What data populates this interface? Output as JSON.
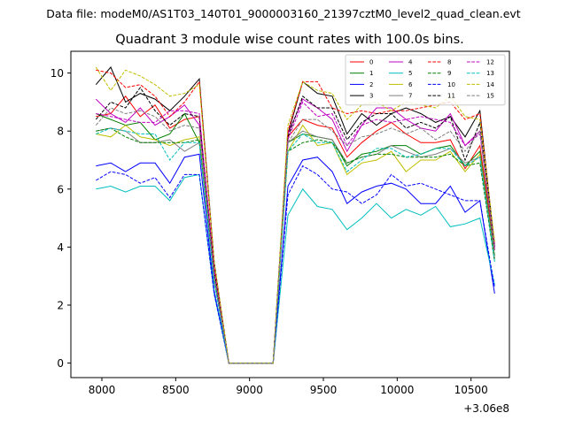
{
  "figure": {
    "suptitle": "Data file: modeM0/AS1T03_140T01_9000003160_21397cztM0_level2_quad_clean.evt",
    "title": "Quadrant 3 module wise count rates with 100.0s bins.",
    "x_offset_label": "+3.06e8"
  },
  "chart_data": {
    "type": "line",
    "title": "Quadrant 3 module wise count rates with 100.0s bins.",
    "xlabel": "",
    "ylabel": "",
    "x_offset": 306000000,
    "xlim": [
      7790,
      10760
    ],
    "ylim": [
      -0.5,
      10.75
    ],
    "xticks": [
      8000,
      8500,
      9000,
      9500,
      10000,
      10500
    ],
    "yticks": [
      0,
      2,
      4,
      6,
      8,
      10
    ],
    "grid": false,
    "legend_position": "top-right",
    "legend_columns": 4,
    "x": [
      7960,
      8060,
      8160,
      8260,
      8360,
      8460,
      8560,
      8660,
      8760,
      8860,
      8960,
      9060,
      9160,
      9260,
      9360,
      9460,
      9560,
      9660,
      9760,
      9860,
      9960,
      10060,
      10160,
      10260,
      10360,
      10460,
      10560,
      10660
    ],
    "series": [
      {
        "name": "0",
        "color": "#ff0000",
        "dash": false,
        "values": [
          8.5,
          8.6,
          9.2,
          8.5,
          8.9,
          8.1,
          8.4,
          8.5,
          3.0,
          0,
          0,
          0,
          0,
          7.8,
          8.4,
          8.2,
          8.1,
          7.1,
          7.6,
          8.0,
          8.3,
          7.9,
          7.6,
          7.6,
          7.7,
          6.7,
          7.5,
          3.9
        ]
      },
      {
        "name": "1",
        "color": "#008000",
        "dash": false,
        "values": [
          8.6,
          8.4,
          8.2,
          8.3,
          7.7,
          7.9,
          8.6,
          7.6,
          3.0,
          0,
          0,
          0,
          0,
          7.6,
          7.9,
          7.8,
          7.7,
          6.8,
          7.2,
          7.3,
          7.5,
          7.5,
          7.2,
          7.4,
          7.5,
          6.8,
          7.3,
          3.7
        ]
      },
      {
        "name": "2",
        "color": "#0000ff",
        "dash": false,
        "values": [
          6.8,
          6.9,
          6.6,
          6.9,
          6.9,
          6.2,
          7.1,
          7.2,
          2.5,
          0,
          0,
          0,
          0,
          6.1,
          7.0,
          7.1,
          6.6,
          5.5,
          5.9,
          6.1,
          6.2,
          6.0,
          5.5,
          5.5,
          6.1,
          5.2,
          5.6,
          2.4
        ]
      },
      {
        "name": "3",
        "color": "#000000",
        "dash": false,
        "values": [
          9.6,
          10.2,
          9.0,
          9.3,
          9.1,
          8.7,
          9.2,
          9.8,
          3.5,
          0,
          0,
          0,
          0,
          7.9,
          9.7,
          9.3,
          9.2,
          7.9,
          8.6,
          8.2,
          8.6,
          8.8,
          8.6,
          8.3,
          8.5,
          7.8,
          8.7,
          4.0
        ]
      },
      {
        "name": "4",
        "color": "#c000c0",
        "dash": false,
        "values": [
          9.1,
          8.6,
          8.3,
          8.8,
          8.2,
          8.5,
          8.9,
          8.2,
          3.2,
          0,
          0,
          0,
          0,
          7.9,
          9.1,
          8.8,
          8.4,
          7.3,
          8.2,
          8.8,
          8.8,
          8.4,
          8.1,
          8.0,
          8.6,
          7.5,
          8.0,
          3.9
        ]
      },
      {
        "name": "5",
        "color": "#00bfbf",
        "dash": false,
        "values": [
          6.0,
          6.1,
          5.9,
          6.1,
          6.1,
          5.6,
          6.4,
          6.5,
          2.4,
          0,
          0,
          0,
          0,
          5.1,
          6.0,
          5.4,
          5.3,
          4.6,
          5.0,
          5.5,
          5.0,
          5.3,
          5.1,
          5.4,
          4.7,
          4.8,
          5.0,
          2.7
        ]
      },
      {
        "name": "6",
        "color": "#bfbf00",
        "dash": false,
        "values": [
          7.9,
          7.8,
          8.2,
          7.8,
          7.7,
          7.5,
          7.7,
          7.8,
          2.9,
          0,
          0,
          0,
          0,
          7.3,
          8.2,
          7.5,
          7.6,
          6.5,
          6.9,
          7.0,
          7.3,
          6.6,
          7.0,
          7.0,
          7.3,
          6.6,
          7.2,
          3.6
        ]
      },
      {
        "name": "7",
        "color": "#7f7f7f",
        "dash": false,
        "values": [
          8.0,
          8.1,
          8.0,
          7.6,
          7.6,
          7.7,
          7.3,
          7.6,
          2.9,
          0,
          0,
          0,
          0,
          7.6,
          8.0,
          7.8,
          7.7,
          6.9,
          7.1,
          7.2,
          7.5,
          7.3,
          7.1,
          7.2,
          7.4,
          6.9,
          7.1,
          3.6
        ]
      },
      {
        "name": "8",
        "color": "#ff0000",
        "dash": true,
        "values": [
          10.1,
          10.0,
          9.5,
          9.6,
          9.2,
          8.5,
          9.0,
          9.7,
          3.4,
          0,
          0,
          0,
          0,
          8.0,
          9.7,
          9.7,
          8.8,
          8.6,
          8.7,
          8.6,
          8.7,
          8.7,
          8.8,
          8.9,
          9.0,
          8.4,
          8.6,
          4.1
        ]
      },
      {
        "name": "9",
        "color": "#008000",
        "dash": true,
        "values": [
          8.0,
          8.1,
          7.8,
          7.6,
          7.6,
          7.6,
          7.6,
          7.7,
          2.9,
          0,
          0,
          0,
          0,
          7.3,
          7.6,
          7.7,
          7.6,
          6.9,
          7.1,
          7.2,
          7.2,
          7.1,
          7.1,
          7.1,
          7.2,
          6.8,
          6.9,
          3.5
        ]
      },
      {
        "name": "10",
        "color": "#0000ff",
        "dash": true,
        "values": [
          6.3,
          6.6,
          6.5,
          6.2,
          6.4,
          5.7,
          6.5,
          6.5,
          2.4,
          0,
          0,
          0,
          0,
          5.8,
          6.8,
          6.5,
          6.0,
          5.9,
          5.5,
          5.8,
          6.5,
          6.1,
          6.2,
          6.0,
          5.8,
          5.6,
          5.6,
          2.6
        ]
      },
      {
        "name": "11",
        "color": "#000000",
        "dash": true,
        "values": [
          8.4,
          9.0,
          8.8,
          9.5,
          8.7,
          8.2,
          8.6,
          8.5,
          3.2,
          0,
          0,
          0,
          0,
          7.8,
          9.2,
          8.8,
          8.8,
          7.7,
          8.3,
          8.6,
          8.6,
          8.1,
          8.3,
          8.1,
          8.5,
          7.0,
          8.3,
          4.0
        ]
      },
      {
        "name": "12",
        "color": "#c000c0",
        "dash": true,
        "values": [
          8.6,
          8.5,
          8.4,
          8.3,
          8.3,
          8.7,
          8.7,
          8.6,
          3.2,
          0,
          0,
          0,
          0,
          7.7,
          9.0,
          8.5,
          8.6,
          7.5,
          8.2,
          8.4,
          8.3,
          8.4,
          8.5,
          8.4,
          8.3,
          7.5,
          7.9,
          4.0
        ]
      },
      {
        "name": "13",
        "color": "#00bfbf",
        "dash": true,
        "values": [
          7.9,
          8.1,
          8.0,
          7.9,
          7.9,
          7.0,
          7.6,
          7.6,
          2.8,
          0,
          0,
          0,
          0,
          7.3,
          7.9,
          7.6,
          7.6,
          6.6,
          7.0,
          7.4,
          7.4,
          7.1,
          7.2,
          7.4,
          7.4,
          6.8,
          7.1,
          3.5
        ]
      },
      {
        "name": "14",
        "color": "#bfbf00",
        "dash": true,
        "values": [
          10.2,
          9.4,
          10.1,
          9.9,
          9.6,
          9.2,
          9.3,
          9.6,
          3.5,
          0,
          0,
          0,
          0,
          8.2,
          9.7,
          9.4,
          9.3,
          8.4,
          8.9,
          9.0,
          8.7,
          9.0,
          8.9,
          8.8,
          9.2,
          8.5,
          8.4,
          4.2
        ]
      },
      {
        "name": "15",
        "color": "#7f7f7f",
        "dash": true,
        "values": [
          8.2,
          8.8,
          8.6,
          8.7,
          8.5,
          8.0,
          8.2,
          8.1,
          3.0,
          0,
          0,
          0,
          0,
          7.6,
          8.4,
          8.4,
          8.0,
          7.5,
          7.8,
          7.9,
          8.1,
          7.9,
          8.1,
          7.7,
          8.0,
          7.3,
          8.0,
          3.9
        ]
      }
    ]
  }
}
